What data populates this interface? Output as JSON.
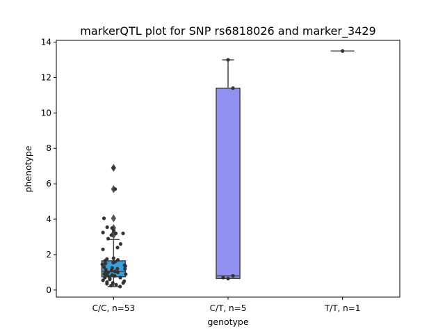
{
  "chart_data": {
    "type": "box",
    "title": "markerQTL plot for SNP rs6818026 and marker_3429",
    "xlabel": "genotype",
    "ylabel": "phenotype",
    "ylim": [
      -0.4,
      14.1
    ],
    "yticks": [
      0,
      2,
      4,
      6,
      8,
      10,
      12,
      14
    ],
    "categories": [
      "C/C, n=53",
      "C/T, n=5",
      "T/T, n=1"
    ],
    "grid": false,
    "colors": {
      "box0": "#3b9edd",
      "box1": "#9191f2",
      "edge": "#444444",
      "points": "#333333"
    },
    "boxes": [
      {
        "category": "C/C, n=53",
        "q1": 0.75,
        "median": 1.05,
        "q3": 1.65,
        "whisker_low": 0.2,
        "whisker_high": 2.85,
        "outliers": [
          3.1,
          3.2,
          3.5,
          4.05,
          5.7,
          6.9
        ]
      },
      {
        "category": "C/T, n=5",
        "q1": 0.65,
        "median": 0.8,
        "q3": 11.4,
        "whisker_low": 0.65,
        "whisker_high": 13.0,
        "outliers": []
      },
      {
        "category": "T/T, n=1",
        "q1": 13.5,
        "median": 13.5,
        "q3": 13.5,
        "whisker_low": 13.5,
        "whisker_high": 13.5,
        "outliers": []
      }
    ],
    "points": [
      {
        "group": 0,
        "values": [
          6.9,
          5.7,
          4.05,
          3.55,
          3.5,
          3.35,
          3.25,
          3.2,
          3.2,
          3.1,
          2.9,
          2.6,
          2.4,
          2.3,
          1.8,
          1.75,
          1.7,
          1.65,
          1.6,
          1.55,
          1.5,
          1.45,
          1.4,
          1.35,
          1.3,
          1.25,
          1.2,
          1.15,
          1.1,
          1.05,
          1.0,
          1.0,
          0.95,
          0.9,
          0.85,
          0.85,
          0.8,
          0.75,
          0.7,
          0.7,
          0.65,
          0.6,
          0.55,
          0.5,
          0.45,
          0.4,
          0.4,
          0.35,
          0.3,
          0.25,
          0.2,
          1.2,
          0.9
        ]
      },
      {
        "group": 1,
        "values": [
          13.0,
          11.4,
          0.8,
          0.7,
          0.65
        ]
      },
      {
        "group": 2,
        "values": [
          13.5
        ]
      }
    ]
  }
}
